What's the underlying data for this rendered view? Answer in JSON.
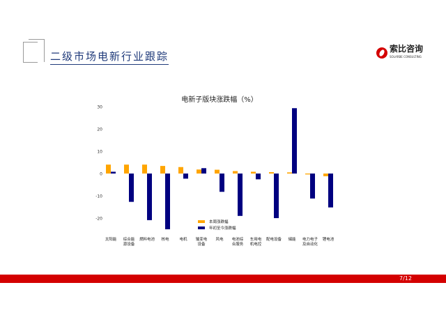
{
  "header": {
    "title": "二级市场电新行业跟踪",
    "logo_text": "索比咨询",
    "logo_sub": "SOLARBE CONSULTING"
  },
  "footer": {
    "page": "7/12"
  },
  "colors": {
    "weekly": "#FFA500",
    "ytd": "#000080",
    "footer": "#D40000"
  },
  "chart_data": {
    "type": "bar",
    "title": "电新子版块涨跌幅（%）",
    "categories": [
      "太阳能",
      "综合能源设备",
      "燃料电池",
      "核电",
      "电机",
      "输变电设备",
      "风电",
      "电池综合服务",
      "车用电机电控",
      "配电设备",
      "储能",
      "电力电子及自动化",
      "锂电池"
    ],
    "category_lines": [
      [
        "太阳能"
      ],
      [
        "综合能",
        "源设备"
      ],
      [
        "燃料电池"
      ],
      [
        "核电"
      ],
      [
        "电机"
      ],
      [
        "输变电",
        "设备"
      ],
      [
        "风电"
      ],
      [
        "电池综",
        "合服务"
      ],
      [
        "车用电",
        "机电控"
      ],
      [
        "配电设备"
      ],
      [
        "储能"
      ],
      [
        "电力电子",
        "及自动化"
      ],
      [
        "锂电池"
      ]
    ],
    "series": [
      {
        "name": "本周涨跌幅",
        "values": [
          4.0,
          4.0,
          4.0,
          3.4,
          2.9,
          1.8,
          1.7,
          1.1,
          0.8,
          0.6,
          0.5,
          -0.4,
          -1.2
        ]
      },
      {
        "name": "年初至今涨跌幅",
        "values": [
          0.8,
          -12.7,
          -20.9,
          -25.0,
          -2.3,
          2.4,
          -8.2,
          -19.0,
          -2.6,
          -20.0,
          29.3,
          -11.2,
          -15.2
        ]
      }
    ],
    "yticks": [
      30,
      20,
      10,
      0,
      -10,
      -20
    ],
    "ylim": [
      -26,
      31
    ],
    "legend": "bottom-center",
    "grid": false
  }
}
